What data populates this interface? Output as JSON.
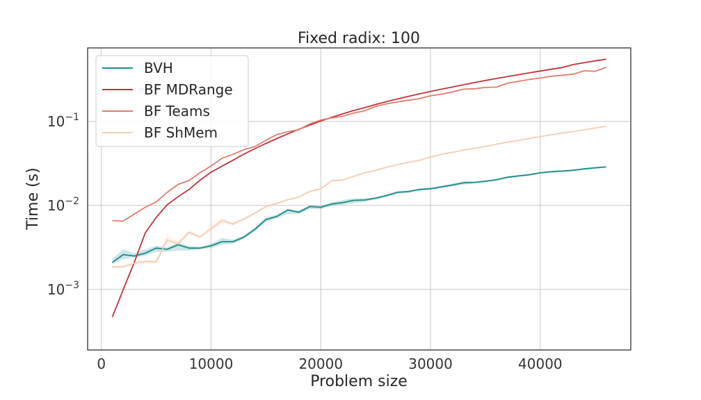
{
  "chart_data": {
    "type": "line",
    "title": "Fixed radix: 100",
    "xlabel": "Problem size",
    "ylabel": "Time (s)",
    "xlim": [
      -1250,
      48250
    ],
    "ylim": [
      0.00019,
      0.75
    ],
    "yscale": "log",
    "grid": true,
    "legend_position": "top-left",
    "x_ticks": [
      0,
      10000,
      20000,
      30000,
      40000
    ],
    "y_ticks": [
      {
        "value": 0.001,
        "base": "10",
        "exp": "−3"
      },
      {
        "value": 0.01,
        "base": "10",
        "exp": "−2"
      },
      {
        "value": 0.1,
        "base": "10",
        "exp": "−1"
      }
    ],
    "series": [
      {
        "name": "BVH",
        "color": "#1a8a8a",
        "band_color": "#1a8a8a",
        "x": [
          1000,
          2000,
          3000,
          4000,
          5000,
          6000,
          7000,
          8000,
          9000,
          10000,
          11000,
          12000,
          13000,
          14000,
          15000,
          16000,
          17000,
          18000,
          19000,
          20000,
          21000,
          22000,
          23000,
          24000,
          25000,
          26000,
          27000,
          28000,
          29000,
          30000,
          31000,
          32000,
          33000,
          34000,
          35000,
          36000,
          37000,
          38000,
          39000,
          40000,
          41000,
          42000,
          43000,
          44000,
          45000,
          46000
        ],
        "values": [
          0.0021,
          0.0026,
          0.0025,
          0.0027,
          0.0031,
          0.003,
          0.0034,
          0.0031,
          0.0031,
          0.0033,
          0.0037,
          0.0037,
          0.0042,
          0.0052,
          0.0068,
          0.0074,
          0.0088,
          0.0083,
          0.0097,
          0.0095,
          0.0104,
          0.0108,
          0.0115,
          0.0116,
          0.0122,
          0.0131,
          0.0143,
          0.0146,
          0.0155,
          0.0158,
          0.0166,
          0.0175,
          0.0186,
          0.0188,
          0.0194,
          0.0202,
          0.0216,
          0.0224,
          0.0232,
          0.0244,
          0.0252,
          0.0256,
          0.0262,
          0.0272,
          0.028,
          0.0287
        ],
        "lower": [
          0.002,
          0.0023,
          0.0024,
          0.0025,
          0.0028,
          0.0028,
          0.0029,
          0.0029,
          0.003,
          0.0031,
          0.0034,
          0.0035,
          0.004,
          0.0049,
          0.0064,
          0.007,
          0.0079,
          0.0079,
          0.0091,
          0.009,
          0.0099,
          0.0102,
          0.0106,
          0.011,
          0.0118,
          0.0127,
          0.0139,
          0.0141,
          0.015,
          0.0154,
          0.0161,
          0.0168,
          0.0176,
          0.0182,
          0.0189,
          0.0197,
          0.021,
          0.0218,
          0.0226,
          0.0238,
          0.0246,
          0.025,
          0.0256,
          0.0266,
          0.0274,
          0.0282
        ],
        "upper": [
          0.0023,
          0.003,
          0.0027,
          0.003,
          0.0033,
          0.0032,
          0.0036,
          0.0033,
          0.0032,
          0.0035,
          0.0041,
          0.0039,
          0.0044,
          0.0055,
          0.0072,
          0.0078,
          0.0092,
          0.0087,
          0.0101,
          0.0099,
          0.0109,
          0.0116,
          0.0122,
          0.0121,
          0.0126,
          0.0135,
          0.0149,
          0.015,
          0.0159,
          0.0162,
          0.0171,
          0.0182,
          0.0194,
          0.0192,
          0.0199,
          0.0206,
          0.0222,
          0.023,
          0.0238,
          0.025,
          0.0258,
          0.0262,
          0.0268,
          0.0278,
          0.0286,
          0.0292
        ]
      },
      {
        "name": "BF MDRange",
        "color": "#c0323c",
        "x": [
          1000,
          2000,
          3000,
          4000,
          5000,
          6000,
          7000,
          8000,
          9000,
          10000,
          11000,
          12000,
          13000,
          14000,
          15000,
          16000,
          17000,
          18000,
          19000,
          20000,
          21000,
          22000,
          23000,
          24000,
          25000,
          26000,
          27000,
          28000,
          29000,
          30000,
          31000,
          32000,
          33000,
          34000,
          35000,
          36000,
          37000,
          38000,
          39000,
          40000,
          41000,
          42000,
          43000,
          44000,
          45000,
          46000
        ],
        "values": [
          0.00047,
          0.001,
          0.0021,
          0.0047,
          0.0072,
          0.0102,
          0.0127,
          0.0155,
          0.02,
          0.0249,
          0.0293,
          0.0345,
          0.0408,
          0.0475,
          0.0547,
          0.0625,
          0.0712,
          0.0805,
          0.0905,
          0.101,
          0.112,
          0.123,
          0.135,
          0.146,
          0.159,
          0.172,
          0.185,
          0.199,
          0.213,
          0.227,
          0.242,
          0.257,
          0.273,
          0.29,
          0.307,
          0.324,
          0.342,
          0.36,
          0.379,
          0.398,
          0.418,
          0.438,
          0.475,
          0.5,
          0.525,
          0.55
        ]
      },
      {
        "name": "BF Teams",
        "color": "#e07c6a",
        "x": [
          1000,
          2000,
          3000,
          4000,
          5000,
          6000,
          7000,
          8000,
          9000,
          10000,
          11000,
          12000,
          13000,
          14000,
          15000,
          16000,
          17000,
          18000,
          19000,
          20000,
          21000,
          22000,
          23000,
          24000,
          25000,
          26000,
          27000,
          28000,
          29000,
          30000,
          31000,
          32000,
          33000,
          34000,
          35000,
          36000,
          37000,
          38000,
          39000,
          40000,
          41000,
          42000,
          43000,
          44000,
          45000,
          46000
        ],
        "values": [
          0.0066,
          0.0065,
          0.0079,
          0.0095,
          0.011,
          0.0143,
          0.0178,
          0.0198,
          0.0245,
          0.0295,
          0.0365,
          0.0405,
          0.0462,
          0.0502,
          0.0595,
          0.0698,
          0.0755,
          0.0798,
          0.0935,
          0.104,
          0.11,
          0.115,
          0.126,
          0.134,
          0.151,
          0.162,
          0.171,
          0.179,
          0.187,
          0.202,
          0.211,
          0.224,
          0.242,
          0.245,
          0.254,
          0.256,
          0.285,
          0.3,
          0.316,
          0.328,
          0.345,
          0.355,
          0.365,
          0.4,
          0.395,
          0.44
        ]
      },
      {
        "name": "BF ShMem",
        "color": "#f6cdb3",
        "x": [
          1000,
          2000,
          3000,
          4000,
          5000,
          6000,
          7000,
          8000,
          9000,
          10000,
          11000,
          12000,
          13000,
          14000,
          15000,
          16000,
          17000,
          18000,
          19000,
          20000,
          21000,
          22000,
          23000,
          24000,
          25000,
          26000,
          27000,
          28000,
          29000,
          30000,
          31000,
          32000,
          33000,
          34000,
          35000,
          36000,
          37000,
          38000,
          39000,
          40000,
          41000,
          42000,
          43000,
          44000,
          45000,
          46000
        ],
        "values": [
          0.00185,
          0.00186,
          0.00205,
          0.00215,
          0.00212,
          0.0039,
          0.0035,
          0.0048,
          0.0042,
          0.0053,
          0.0066,
          0.006,
          0.0069,
          0.0081,
          0.0097,
          0.0106,
          0.0117,
          0.0126,
          0.0147,
          0.0158,
          0.0197,
          0.0201,
          0.0222,
          0.0245,
          0.0262,
          0.0285,
          0.0306,
          0.0326,
          0.0345,
          0.0378,
          0.0405,
          0.0428,
          0.0455,
          0.0478,
          0.0505,
          0.0535,
          0.0565,
          0.0592,
          0.0625,
          0.0658,
          0.0692,
          0.0725,
          0.0758,
          0.0793,
          0.0835,
          0.0875
        ],
        "lower": [
          0.00178,
          0.00178,
          0.00195,
          0.00205,
          0.00202,
          0.0036,
          0.0033,
          0.0045,
          0.004,
          0.0049,
          0.0061,
          0.0057,
          0.0066,
          0.0078,
          0.0094,
          0.0103,
          0.0114,
          0.0123,
          0.0143,
          0.0154,
          0.0192,
          0.0197,
          0.0217,
          0.024,
          0.0257,
          0.028,
          0.0301,
          0.0321,
          0.034,
          0.0372,
          0.0399,
          0.0422,
          0.0449,
          0.0472,
          0.0499,
          0.0528,
          0.0558,
          0.0585,
          0.0618,
          0.0651,
          0.0685,
          0.0718,
          0.0751,
          0.0786,
          0.0828,
          0.0868
        ],
        "upper": [
          0.00192,
          0.00195,
          0.00215,
          0.00225,
          0.0023,
          0.0045,
          0.0038,
          0.0051,
          0.0044,
          0.0058,
          0.0071,
          0.0063,
          0.0072,
          0.0084,
          0.01,
          0.0109,
          0.012,
          0.0129,
          0.0151,
          0.0162,
          0.0202,
          0.0205,
          0.0227,
          0.025,
          0.0267,
          0.029,
          0.0311,
          0.0331,
          0.035,
          0.0384,
          0.0411,
          0.0434,
          0.0461,
          0.0484,
          0.0511,
          0.0542,
          0.0572,
          0.0599,
          0.0632,
          0.0665,
          0.0699,
          0.0732,
          0.0765,
          0.08,
          0.0842,
          0.0882
        ]
      }
    ]
  }
}
